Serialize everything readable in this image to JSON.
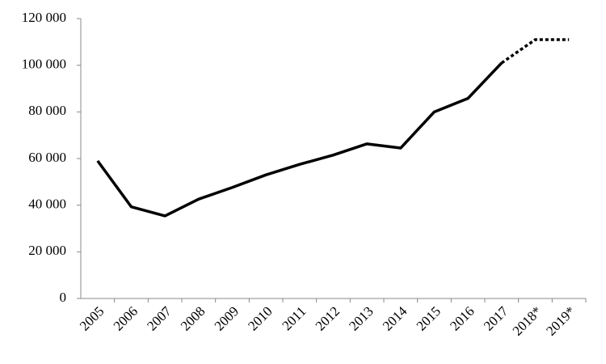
{
  "chart_data": {
    "type": "line",
    "categories": [
      "2005",
      "2006",
      "2007",
      "2008",
      "2009",
      "2010",
      "2011",
      "2012",
      "2013",
      "2014",
      "2015",
      "2016",
      "2017",
      "2018*",
      "2019*"
    ],
    "values": [
      59000,
      39300,
      35400,
      42600,
      47600,
      53000,
      57500,
      61500,
      66300,
      64500,
      80000,
      85800,
      101000,
      111000,
      111000
    ],
    "line_styles": [
      "solid",
      "solid",
      "solid",
      "solid",
      "solid",
      "solid",
      "solid",
      "solid",
      "solid",
      "solid",
      "solid",
      "solid",
      "solid",
      "dotted",
      "dotted"
    ],
    "color": "#000000",
    "ylim": [
      0,
      120000
    ],
    "yticks": [
      0,
      {
        "value": 20000,
        "label": "20 000"
      },
      {
        "value": 40000,
        "label": "40 000"
      },
      {
        "value": 60000,
        "label": "60 000"
      },
      {
        "value": 80000,
        "label": "80 000"
      },
      {
        "value": 100000,
        "label": "100 000"
      },
      {
        "value": 120000,
        "label": "120 000"
      }
    ],
    "grid": false
  }
}
